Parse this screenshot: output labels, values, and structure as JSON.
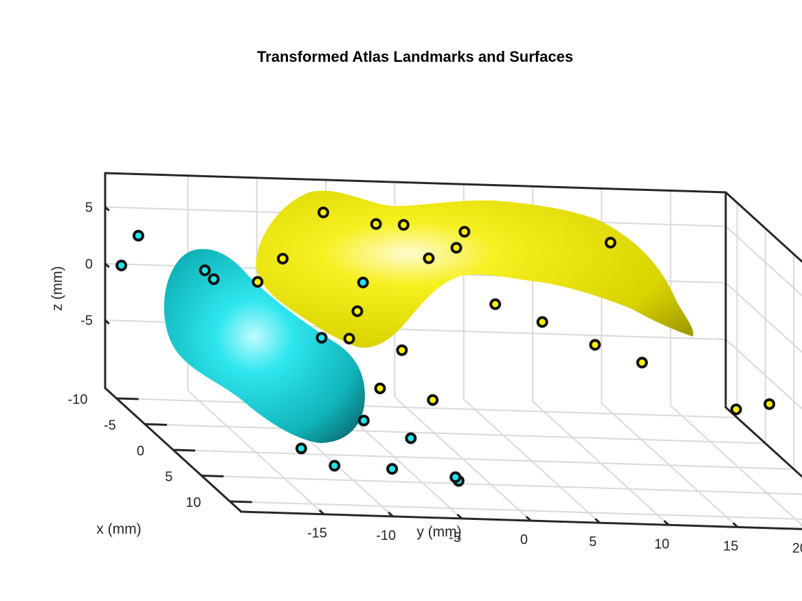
{
  "chart_data": {
    "type": "scatter",
    "title": "Transformed Atlas Landmarks and Surfaces",
    "xlabel": "x (mm)",
    "ylabel": "y (mm)",
    "zlabel": "z (mm)",
    "x_ticks": [
      "-10",
      "-5",
      "0",
      "5",
      "10"
    ],
    "y_ticks": [
      "-15",
      "-10",
      "-5",
      "0",
      "5",
      "10",
      "15",
      "20"
    ],
    "z_ticks": [
      "5",
      "0",
      "-5"
    ],
    "grid": true,
    "colors": {
      "cyan_landmark": "#22e5ee",
      "yellow_landmark": "#fff200",
      "cyan_surface": "#13c9cf",
      "yellow_surface": "#e6e200",
      "edge": "#111111"
    },
    "series": [
      {
        "color": "#22e5ee",
        "points": [
          [
            -11,
            -19,
            3
          ],
          [
            -14,
            -19,
            -1
          ],
          [
            -9,
            -15,
            1
          ],
          [
            -5,
            -16,
            2
          ],
          [
            9,
            -13,
            -8
          ],
          [
            8,
            -15,
            -7
          ],
          [
            2,
            -8,
            -7
          ],
          [
            7,
            -8,
            -9
          ],
          [
            -3,
            -9,
            -2
          ],
          [
            -3,
            -6,
            3
          ],
          [
            3,
            -5,
            -8
          ],
          [
            9,
            -4,
            -9
          ],
          [
            6,
            -3,
            -10
          ]
        ]
      },
      {
        "color": "#fff200",
        "points": [
          [
            -5,
            -11,
            4
          ],
          [
            -7,
            -12,
            1
          ],
          [
            -3,
            -7,
            -2
          ],
          [
            -10,
            -6,
            6
          ],
          [
            -8,
            -3,
            6
          ],
          [
            -8,
            -1,
            6
          ],
          [
            -6,
            0,
            4
          ],
          [
            -1,
            -4,
            -2
          ],
          [
            2,
            -3,
            -5
          ],
          [
            -7,
            3,
            6
          ],
          [
            -4,
            4,
            1
          ],
          [
            -3,
            7,
            0
          ],
          [
            -1,
            10,
            -1
          ],
          [
            0,
            13,
            -2
          ],
          [
            -8,
            14,
            5
          ],
          [
            2,
            19,
            -5
          ],
          [
            3,
            21,
            -4
          ],
          [
            -6,
            2,
            5
          ],
          [
            0,
            -6,
            -5
          ],
          [
            -4,
            -6,
            0
          ]
        ]
      }
    ]
  }
}
